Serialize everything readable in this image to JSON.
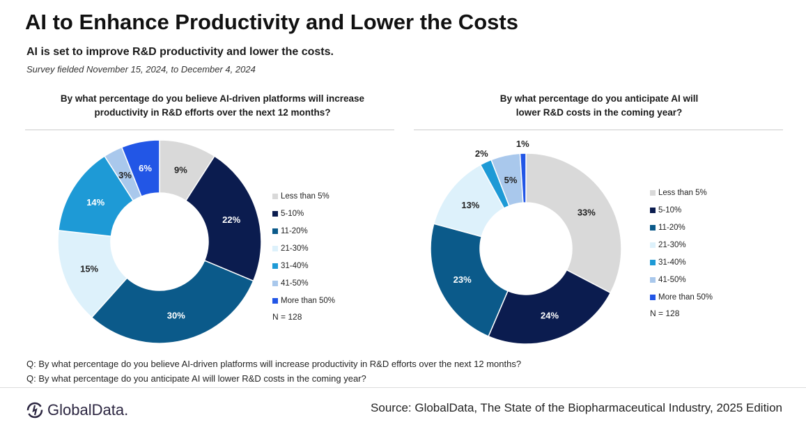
{
  "header": {
    "title": "AI to Enhance Productivity and Lower the Costs",
    "subtitle": "AI is set to improve R&D productivity and lower the costs.",
    "fielded": "Survey fielded November 15, 2024, to December 4, 2024"
  },
  "colors": {
    "Less than 5%": "#d9d9d9",
    "5-10%": "#0b1c4f",
    "11-20%": "#0b5a8a",
    "21-30%": "#ddf1fb",
    "31-40%": "#1e9ad6",
    "41-50%": "#a9c8ec",
    "More than 50%": "#2256e6"
  },
  "chart_data": [
    {
      "type": "pie",
      "donut": true,
      "title": "By what percentage do you believe AI-driven platforms will increase productivity in R&D efforts over the next 12 months?",
      "categories": [
        "Less than 5%",
        "5-10%",
        "11-20%",
        "21-30%",
        "31-40%",
        "41-50%",
        "More than 50%"
      ],
      "values": [
        9,
        22,
        30,
        15,
        14,
        3,
        6
      ],
      "labels": [
        "9%",
        "22%",
        "30%",
        "15%",
        "14%",
        "3%",
        "6%"
      ],
      "legend_position": "right",
      "note": "N = 128"
    },
    {
      "type": "pie",
      "donut": true,
      "title": "By what percentage do you anticipate AI will lower R&D costs in the coming year?",
      "categories": [
        "Less than 5%",
        "5-10%",
        "11-20%",
        "21-30%",
        "31-40%",
        "41-50%",
        "More than 50%"
      ],
      "values": [
        33,
        24,
        23,
        13,
        2,
        5,
        1
      ],
      "labels": [
        "33%",
        "24%",
        "23%",
        "13%",
        "2%",
        "5%",
        "1%"
      ],
      "legend_position": "right",
      "note": "N = 128"
    }
  ],
  "footer": {
    "q1": "Q: By what percentage do you believe AI-driven platforms will increase productivity  in R&D efforts over the next 12 months?",
    "q2": "Q: By what percentage do you anticipate AI will lower R&D costs in the coming year?",
    "source": "Source: GlobalData, The State of the Biopharmaceutical Industry, 2025 Edition",
    "logo": "GlobalData."
  }
}
